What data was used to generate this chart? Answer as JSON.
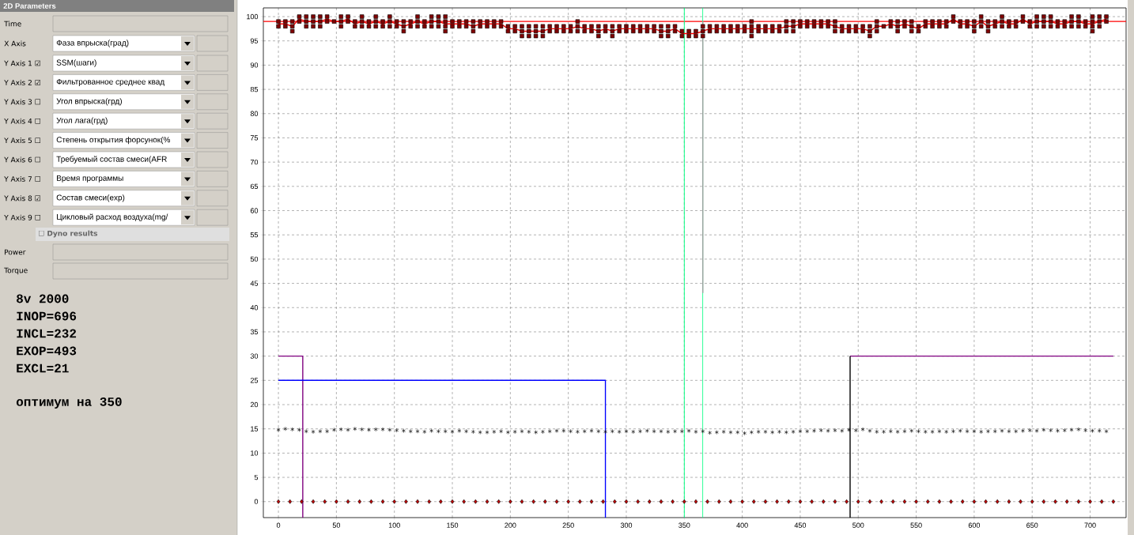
{
  "chart_data": {
    "type": "scatter",
    "xlim": [
      -13,
      731
    ],
    "ylim": [
      -3.3,
      101.8
    ],
    "xticks": [
      0,
      50,
      100,
      150,
      200,
      250,
      300,
      350,
      400,
      450,
      500,
      550,
      600,
      650,
      700
    ],
    "yticks": [
      0,
      5,
      10,
      15,
      20,
      25,
      30,
      35,
      40,
      45,
      50,
      55,
      60,
      65,
      70,
      75,
      80,
      85,
      90,
      95,
      100
    ],
    "grid": true,
    "x": [
      0,
      6,
      12,
      18,
      24,
      30,
      36,
      42,
      48,
      54,
      60,
      66,
      72,
      78,
      84,
      90,
      96,
      102,
      108,
      114,
      120,
      126,
      132,
      138,
      144,
      150,
      156,
      162,
      168,
      174,
      180,
      186,
      192,
      198,
      204,
      210,
      216,
      222,
      228,
      234,
      240,
      246,
      252,
      258,
      264,
      270,
      276,
      282,
      288,
      294,
      300,
      306,
      312,
      318,
      324,
      330,
      336,
      342,
      348,
      354,
      360,
      366,
      372,
      378,
      384,
      390,
      396,
      402,
      408,
      414,
      420,
      426,
      432,
      438,
      444,
      450,
      456,
      462,
      468,
      474,
      480,
      486,
      492,
      498,
      504,
      510,
      516,
      522,
      528,
      534,
      540,
      546,
      552,
      558,
      564,
      570,
      576,
      582,
      588,
      594,
      600,
      606,
      612,
      618,
      624,
      630,
      636,
      642,
      648,
      654,
      660,
      666,
      672,
      678,
      684,
      690,
      696,
      702,
      708,
      714
    ],
    "series": [
      {
        "marker": "square",
        "color": "#800000",
        "x": [
          0,
          0,
          6,
          6,
          12,
          12,
          12,
          18,
          18,
          24,
          24,
          24,
          30,
          30,
          30,
          36,
          36,
          36,
          42,
          42,
          48,
          54,
          54,
          54,
          60,
          60,
          66,
          66,
          72,
          72,
          72,
          78,
          78,
          84,
          84,
          84,
          90,
          90,
          96,
          96,
          96,
          102,
          102,
          108,
          108,
          108,
          114,
          114,
          120,
          120,
          120,
          126,
          126,
          132,
          132,
          132,
          138,
          138,
          138,
          144,
          144,
          144,
          144,
          150,
          150,
          156,
          156,
          162,
          162,
          168,
          168,
          168,
          174,
          174,
          180,
          180,
          186,
          186,
          192,
          192,
          198,
          198,
          204,
          204,
          210,
          210,
          210,
          216,
          216,
          216,
          222,
          222,
          222,
          228,
          228,
          228,
          234,
          234,
          240,
          240,
          246,
          246,
          252,
          252,
          258,
          258,
          258,
          264,
          264,
          270,
          270,
          276,
          276,
          276,
          282,
          282,
          288,
          288,
          288,
          294,
          294,
          300,
          300,
          306,
          306,
          312,
          312,
          318,
          318,
          324,
          324,
          330,
          330,
          330,
          336,
          336,
          336,
          342,
          342,
          348,
          348,
          354,
          354,
          360,
          360,
          366,
          366,
          366,
          372,
          372,
          378,
          378,
          384,
          384,
          390,
          390,
          396,
          396,
          402,
          402,
          408,
          408,
          408,
          408,
          414,
          414,
          420,
          420,
          426,
          426,
          432,
          432,
          438,
          438,
          438,
          444,
          444,
          444,
          450,
          450,
          456,
          456,
          462,
          462,
          468,
          468,
          474,
          474,
          480,
          480,
          480,
          486,
          486,
          492,
          492,
          498,
          498,
          504,
          504,
          510,
          510,
          510,
          516,
          516,
          516,
          522,
          528,
          528,
          534,
          534,
          534,
          540,
          540,
          546,
          546,
          546,
          552,
          552,
          558,
          558,
          564,
          564,
          570,
          570,
          576,
          576,
          582,
          582,
          588,
          588,
          594,
          594,
          600,
          600,
          600,
          606,
          606,
          606,
          612,
          612,
          612,
          618,
          618,
          624,
          624,
          624,
          630,
          630,
          636,
          636,
          642,
          642,
          648,
          648,
          654,
          654,
          654,
          660,
          660,
          660,
          666,
          666,
          666,
          672,
          672,
          678,
          678,
          684,
          684,
          684,
          690,
          690,
          690,
          696,
          696,
          702,
          702,
          702,
          702,
          708,
          708,
          708,
          714,
          714
        ],
        "values": [
          99,
          98,
          99,
          98,
          99,
          98,
          97,
          100,
          99,
          100,
          99,
          98,
          100,
          99,
          98,
          100,
          99,
          98,
          100,
          99,
          99,
          100,
          99,
          98,
          100,
          99,
          99,
          98,
          100,
          99,
          98,
          99,
          98,
          100,
          99,
          98,
          99,
          98,
          100,
          99,
          98,
          99,
          98,
          99,
          98,
          97,
          99,
          98,
          100,
          99,
          98,
          99,
          98,
          100,
          99,
          98,
          100,
          99,
          98,
          100,
          99,
          98,
          97,
          99,
          98,
          99,
          98,
          99,
          98,
          99,
          98,
          97,
          99,
          98,
          99,
          98,
          99,
          98,
          99,
          98,
          98,
          97,
          98,
          97,
          98,
          97,
          96,
          98,
          97,
          96,
          98,
          97,
          96,
          98,
          97,
          96,
          98,
          97,
          98,
          97,
          98,
          97,
          98,
          97,
          99,
          98,
          97,
          98,
          97,
          98,
          97,
          98,
          97,
          96,
          98,
          97,
          98,
          97,
          96,
          98,
          97,
          98,
          97,
          98,
          97,
          98,
          97,
          98,
          97,
          98,
          97,
          98,
          97,
          96,
          98,
          97,
          96,
          98,
          97,
          97,
          96,
          97,
          96,
          97,
          96,
          98,
          97,
          96,
          98,
          97,
          98,
          97,
          98,
          97,
          98,
          97,
          98,
          97,
          98,
          97,
          99,
          98,
          97,
          96,
          98,
          97,
          98,
          97,
          98,
          97,
          98,
          97,
          99,
          98,
          97,
          99,
          98,
          97,
          99,
          98,
          99,
          98,
          99,
          98,
          99,
          98,
          99,
          98,
          99,
          98,
          97,
          98,
          97,
          98,
          97,
          98,
          97,
          98,
          97,
          98,
          97,
          96,
          99,
          98,
          97,
          98,
          99,
          98,
          99,
          98,
          97,
          99,
          98,
          99,
          98,
          97,
          98,
          97,
          99,
          98,
          99,
          98,
          99,
          98,
          99,
          98,
          100,
          99,
          99,
          98,
          99,
          98,
          99,
          98,
          97,
          100,
          99,
          98,
          99,
          98,
          97,
          99,
          98,
          100,
          99,
          98,
          99,
          98,
          99,
          98,
          100,
          99,
          99,
          98,
          100,
          99,
          98,
          100,
          99,
          98,
          100,
          99,
          98,
          99,
          98,
          99,
          98,
          100,
          99,
          98,
          100,
          99,
          98,
          99,
          98,
          100,
          99,
          98,
          97,
          100,
          99,
          98,
          100,
          99
        ]
      },
      {
        "type": "line",
        "color": "#ff0000",
        "values": [
          98.5,
          98.5,
          98,
          99.5,
          99,
          99,
          99,
          99.5,
          99,
          99,
          99.5,
          98.5,
          99,
          98.5,
          99,
          98.5,
          99,
          98.5,
          98,
          98.5,
          99,
          98.5,
          99,
          99,
          98.5,
          98.5,
          98.5,
          98.5,
          98,
          98.5,
          98.5,
          98.5,
          98.5,
          97.5,
          97.5,
          97,
          97,
          97,
          97,
          97.5,
          97.5,
          97.5,
          97.5,
          98,
          97.5,
          97.5,
          97,
          97.5,
          97,
          97.5,
          97.5,
          97.5,
          97.5,
          97.5,
          97.5,
          97,
          97,
          97.5,
          96.5,
          96.5,
          96.5,
          97,
          97.5,
          97.5,
          97.5,
          97.5,
          97.5,
          97.5,
          97.5,
          97.5,
          97.5,
          97.5,
          97.5,
          98,
          98,
          98.5,
          98.5,
          98.5,
          98.5,
          98.5,
          98,
          97.5,
          97.5,
          97.5,
          97.5,
          97,
          98,
          98,
          98.5,
          98,
          98.5,
          98,
          97.5,
          98.5,
          98.5,
          98.5,
          98.5,
          99.5,
          98.5,
          98.5,
          98,
          99,
          98,
          98.5,
          99,
          98.5,
          98.5,
          99.5,
          98.5,
          99,
          99,
          99,
          98.5,
          98.5,
          99,
          99,
          98.5,
          98.5,
          99,
          99.5
        ]
      },
      {
        "marker": "cross",
        "color": "#000000",
        "values": [
          14.8,
          15,
          14.9,
          14.8,
          14.5,
          14.4,
          14.5,
          14.5,
          14.8,
          14.9,
          14.8,
          15,
          14.9,
          14.8,
          14.9,
          14.9,
          14.8,
          14.7,
          14.6,
          14.5,
          14.5,
          14.4,
          14.6,
          14.5,
          14.5,
          14.4,
          14.6,
          14.5,
          14.4,
          14.3,
          14.3,
          14.4,
          14.5,
          14.3,
          14.4,
          14.5,
          14.4,
          14.3,
          14.4,
          14.5,
          14.6,
          14.6,
          14.5,
          14.4,
          14.5,
          14.6,
          14.5,
          14.4,
          14.5,
          14.4,
          14.5,
          14.4,
          14.5,
          14.6,
          14.5,
          14.5,
          14.4,
          14.5,
          14.5,
          14.6,
          14.4,
          14.5,
          14.2,
          14.3,
          14.4,
          14.3,
          14.3,
          14.1,
          14.3,
          14.4,
          14.4,
          14.3,
          14.4,
          14.3,
          14.4,
          14.5,
          14.5,
          14.6,
          14.7,
          14.6,
          14.7,
          14.6,
          14.8,
          14.7,
          14.9,
          14.6,
          14.4,
          14.4,
          14.5,
          14.4,
          14.5,
          14.6,
          14.5,
          14.4,
          14.4,
          14.5,
          14.4,
          14.5,
          14.6,
          14.5,
          14.5,
          14.4,
          14.5,
          14.5,
          14.6,
          14.5,
          14.5,
          14.6,
          14.7,
          14.6,
          14.8,
          14.7,
          14.6,
          14.7,
          14.8,
          14.9,
          14.7,
          14.6,
          14.6,
          14.5
        ]
      },
      {
        "marker": "diamond",
        "color": "#c00000",
        "x": [
          0,
          10,
          20,
          30,
          40,
          50,
          60,
          70,
          80,
          90,
          100,
          110,
          120,
          130,
          140,
          150,
          160,
          170,
          180,
          190,
          200,
          210,
          220,
          230,
          240,
          250,
          260,
          270,
          280,
          290,
          300,
          310,
          320,
          330,
          340,
          350,
          360,
          370,
          380,
          390,
          400,
          410,
          420,
          430,
          440,
          450,
          460,
          470,
          480,
          490,
          500,
          510,
          520,
          530,
          540,
          550,
          560,
          570,
          580,
          590,
          600,
          610,
          620,
          630,
          640,
          650,
          660,
          670,
          680,
          690,
          700,
          710,
          720
        ],
        "values": [
          0,
          0,
          0,
          0,
          0,
          0,
          0,
          0,
          0,
          0,
          0,
          0,
          0,
          0,
          0,
          0,
          0,
          0,
          0,
          0,
          0,
          0,
          0,
          0,
          0,
          0,
          0,
          0,
          0,
          0,
          0,
          0,
          0,
          0,
          0,
          0,
          0,
          0,
          0,
          0,
          0,
          0,
          0,
          0,
          0,
          0,
          0,
          0,
          0,
          0,
          0,
          0,
          0,
          0,
          0,
          0,
          0,
          0,
          0,
          0,
          0,
          0,
          0,
          0,
          0,
          0,
          0,
          0,
          0,
          0,
          0,
          0,
          0
        ]
      },
      {
        "type": "line",
        "color": "#800080",
        "x": [
          0,
          21,
          21
        ],
        "values": [
          30,
          30,
          -3.3
        ]
      },
      {
        "type": "line",
        "color": "#800080",
        "x": [
          493,
          720
        ],
        "values": [
          30,
          30
        ]
      },
      {
        "type": "line",
        "color": "#000000",
        "x": [
          493,
          493
        ],
        "values": [
          -3.3,
          30
        ]
      },
      {
        "type": "line",
        "color": "#0000ff",
        "x": [
          0,
          282,
          282
        ],
        "values": [
          25,
          25,
          -3.3
        ]
      },
      {
        "type": "line",
        "color": "#a0a0a0",
        "x": [
          366,
          366
        ],
        "values": [
          99,
          43
        ]
      }
    ],
    "ref_lines": [
      {
        "axis": "y",
        "value": 99,
        "color": "#ff0000"
      },
      {
        "axis": "x",
        "value": 350,
        "color": "#00ff80"
      },
      {
        "axis": "x",
        "value": 366,
        "color": "#00ff80"
      }
    ],
    "annotations": [
      "2D Parameters",
      "Time",
      "X Axis",
      "Фаза впрыска(град)",
      "Y Axis 1 ☑",
      "SSM(шаги)",
      "Y Axis 2 ☑",
      "Фильтрованное среднее квад",
      "Y Axis 3 ☐",
      "Угол впрыска(грд)",
      "Y Axis 4 ☐",
      "Угол лага(грд)",
      "Y Axis 5 ☐",
      "Степень открытия форсунок(%",
      "Y Axis 6 ☐",
      "Требуемый состав смеси(AFR",
      "Y Axis 7 ☐",
      "Время программы",
      "Y Axis 8 ☑",
      "Состав смеси(exp)",
      "Y Axis 9 ☐",
      "Цикловый расход воздуха(mg/",
      "☐ Dyno results",
      "Power",
      "Torque",
      "8v 2000",
      "INOP=696",
      "INCL=232",
      "EXOP=493",
      "EXCL=21",
      "оптимум на 350"
    ]
  }
}
